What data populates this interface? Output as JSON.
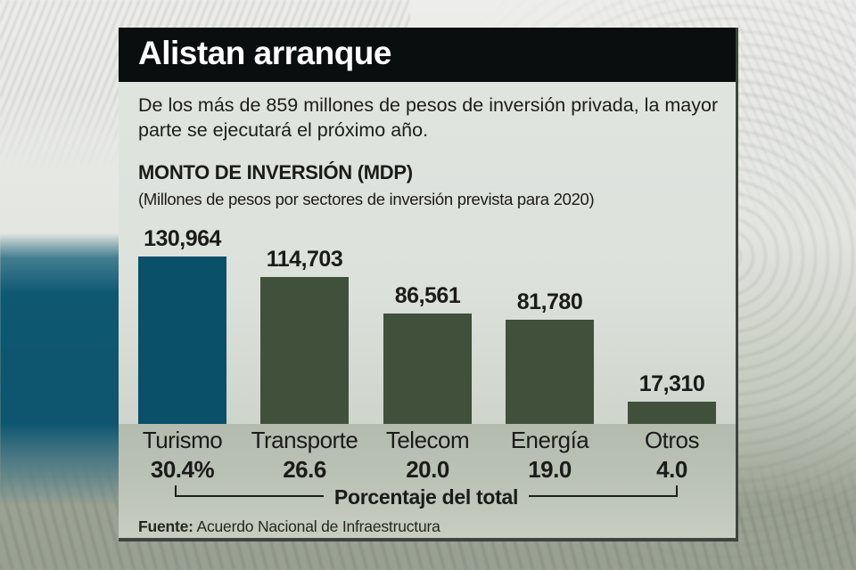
{
  "header": {
    "title": "Alistan arranque"
  },
  "intro": {
    "text": "De los más de 859 millones de pesos de inversión privada, la mayor parte se ejecutará el próximo año."
  },
  "chart_data": {
    "type": "bar",
    "title": "MONTO DE INVERSIÓN (MDP)",
    "subtitle": "(Millones de pesos por sectores de inversión prevista para 2020)",
    "categories": [
      "Turismo",
      "Transporte",
      "Telecom",
      "Energía",
      "Otros"
    ],
    "values": [
      130964,
      114703,
      86561,
      81780,
      17310
    ],
    "value_labels": [
      "130,964",
      "114,703",
      "86,561",
      "81,780",
      "17,310"
    ],
    "percent_labels": [
      "30.4%",
      "26.6",
      "20.0",
      "19.0",
      "4.0"
    ],
    "percent_axis_label": "Porcentaje del total",
    "bar_colors": [
      "#0a5068",
      "#40503b",
      "#40503b",
      "#40503b",
      "#40503b"
    ],
    "ylim": [
      0,
      130964
    ],
    "legend": "none",
    "grid": false
  },
  "source": {
    "label": "Fuente:",
    "text": "Acuerdo Nacional de Infraestructura"
  },
  "colors": {
    "accent_teal": "#0a5068",
    "bar_olive": "#40503b",
    "header_bg": "#0b0e0f",
    "card_bg": "#dde1dc",
    "band_bg": "#b7bfb2",
    "text": "#1d1d1b"
  }
}
